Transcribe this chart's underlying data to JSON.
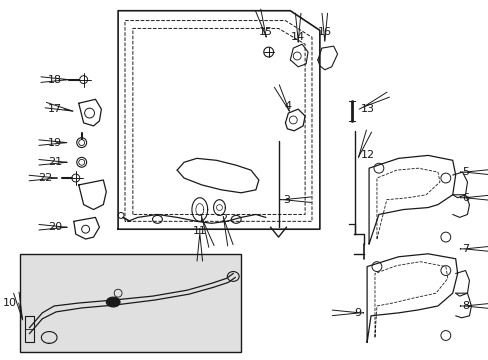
{
  "bg_color": "#ffffff",
  "fig_width": 4.89,
  "fig_height": 3.6,
  "dpi": 100,
  "line_color": "#1a1a1a",
  "label_fontsize": 8.0,
  "inset_bg": "#e0e0e0"
}
